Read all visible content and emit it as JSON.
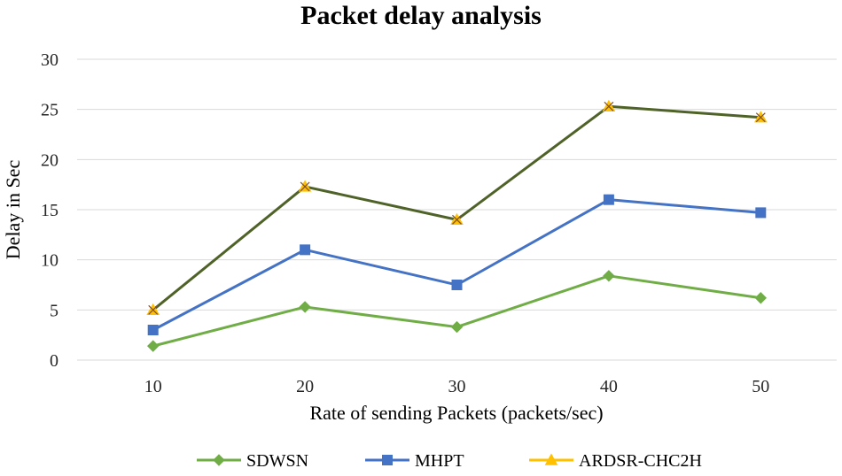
{
  "chart_data": {
    "type": "line",
    "title": "Packet delay analysis",
    "xlabel": "Rate of sending Packets (packets/sec)",
    "ylabel": "Delay in Sec",
    "categories": [
      "10",
      "20",
      "30",
      "40",
      "50"
    ],
    "ylim": [
      0,
      30
    ],
    "yticks": [
      "0",
      "5",
      "10",
      "15",
      "20",
      "25",
      "30"
    ],
    "grid": true,
    "legend_position": "bottom",
    "series": [
      {
        "name": "SDWSN",
        "values": [
          1.4,
          5.3,
          3.3,
          8.4,
          6.2
        ],
        "color": "#70ad47",
        "marker": "diamond"
      },
      {
        "name": "MHPT",
        "values": [
          3.0,
          11.0,
          7.5,
          16.0,
          14.7
        ],
        "color": "#4472c4",
        "marker": "square"
      },
      {
        "name": "ARDSR-CHC2H",
        "values": [
          5.0,
          17.3,
          14.0,
          25.3,
          24.2
        ],
        "color": "#ffc000",
        "line_color": "#4f6228",
        "marker": "triangle"
      }
    ]
  }
}
